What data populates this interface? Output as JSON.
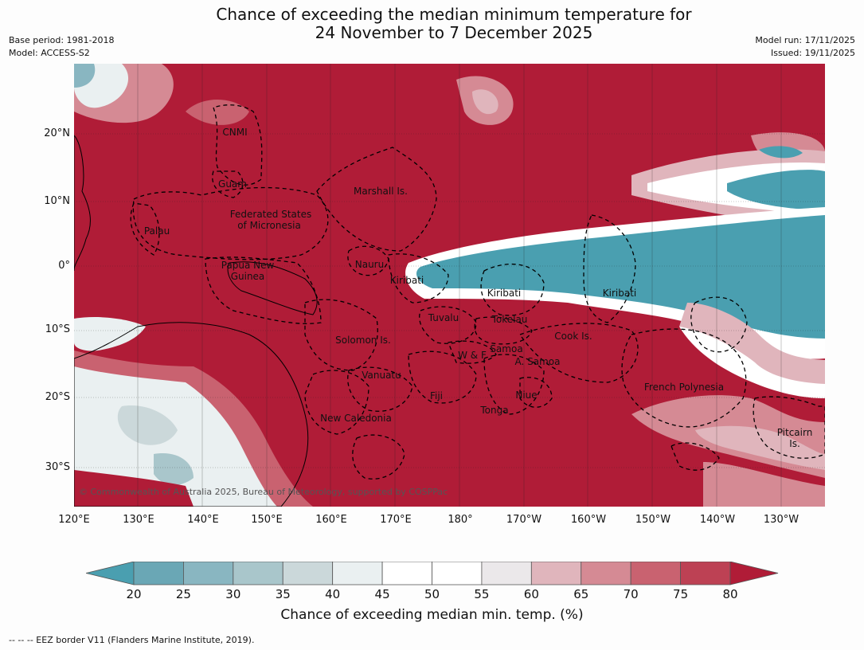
{
  "title_line1": "Chance of exceeding the median minimum temperature for",
  "title_line2": "24 November to 7 December 2025",
  "meta_left": {
    "base_period": "Base period: 1981-2018",
    "model": "Model: ACCESS-S2"
  },
  "meta_right": {
    "model_run": "Model run: 17/11/2025",
    "issued": "Issued: 19/11/2025"
  },
  "lat_ticks": [
    "20°N",
    "10°N",
    "0°",
    "10°S",
    "20°S",
    "30°S"
  ],
  "lon_ticks": [
    "120°E",
    "130°E",
    "140°E",
    "150°E",
    "160°E",
    "170°E",
    "180°",
    "170°W",
    "160°W",
    "150°W",
    "140°W",
    "130°W"
  ],
  "labels": {
    "cnmi": "CNMI",
    "guam": "Guam",
    "marshall": "Marshall Is.",
    "fsm1": "Federated States",
    "fsm2": "of Micronesia",
    "palau": "Palau",
    "nauru": "Nauru",
    "png1": "Papua New",
    "png2": "Guinea",
    "kiribati_w": "Kiribati",
    "kiribati_c": "Kiribati",
    "kiribati_e": "Kiribati",
    "tuvalu": "Tuvalu",
    "tokelau": "Tokelau",
    "cook": "Cook Is.",
    "solomon": "Solomon Is.",
    "wf": "W & F",
    "samoa": "Samoa",
    "asamoa": "A. Samoa",
    "vanuatu": "Vanuatu",
    "fiji": "Fiji",
    "niue": "Niue",
    "tonga": "Tonga",
    "new_caledonia": "New Caledonia",
    "french_polynesia": "French Polynesia",
    "pitcairn1": "Pitcairn",
    "pitcairn2": "Is."
  },
  "copyright": "© Commonwealth of Australia 2025, Bureau of Meteorology, supported by COSPPac",
  "colorbar": {
    "ticks": [
      "20",
      "25",
      "30",
      "35",
      "40",
      "45",
      "50",
      "55",
      "60",
      "65",
      "70",
      "75",
      "80"
    ],
    "colors": [
      "#6aa7b5",
      "#89b6c1",
      "#a9c6cb",
      "#cbd8da",
      "#eaf0f1",
      "#ffffff",
      "#ffffff",
      "#ebe8ea",
      "#e0b5bc",
      "#d58a94",
      "#c96270",
      "#bd4154"
    ],
    "low_color": "#4a9fb0",
    "high_color": "#b01c37",
    "label": "Chance of exceeding median min. temp. (%)"
  },
  "footnote": "--  --  -- EEZ border V11 (Flanders Marine Institute, 2019)."
}
